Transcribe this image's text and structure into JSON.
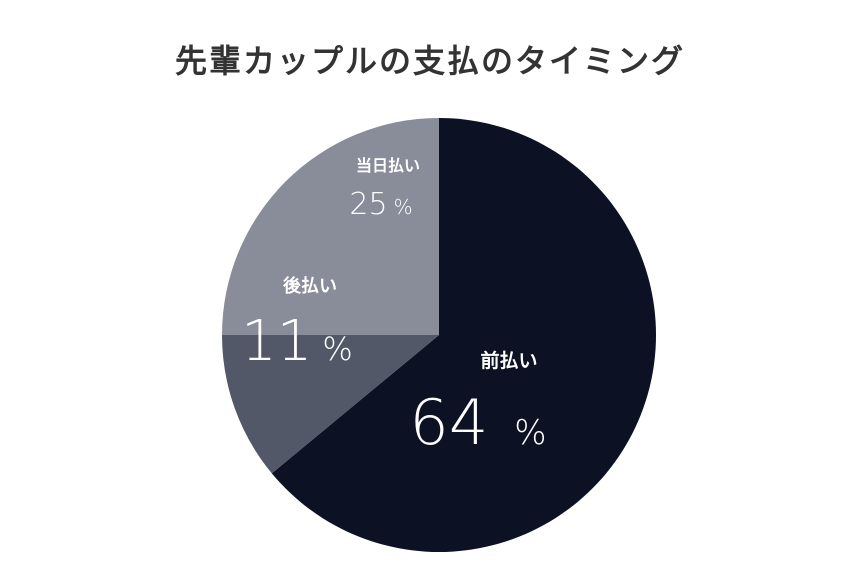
{
  "chart_data": {
    "type": "pie",
    "title": "先輩カップルの支払のタイミング",
    "unit": "%",
    "slices": [
      {
        "label": "前払い",
        "value": 64,
        "color": "#0c1124"
      },
      {
        "label": "後払い",
        "value": 11,
        "color": "#525868"
      },
      {
        "label": "当日払い",
        "value": 25,
        "color": "#898d9a"
      }
    ],
    "start_angle_deg": 0,
    "direction": "clockwise"
  }
}
